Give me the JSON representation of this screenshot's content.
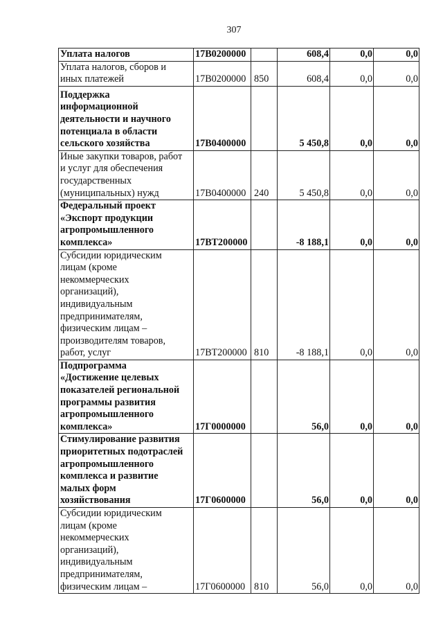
{
  "page_number": "307",
  "rows": [
    {
      "name": "Уплата налогов",
      "code": "17В0200000",
      "vr": "",
      "v1": "608,4",
      "v2": "0,0",
      "v3": "0,0",
      "bold": true
    },
    {
      "name": "Уплата налогов, сборов и\nиных платежей",
      "code": "17В0200000",
      "vr": "850",
      "v1": "608,4",
      "v2": "0,0",
      "v3": "0,0",
      "bold": false
    },
    {
      "name": "Поддержка\nинформационной\nдеятельности и научного\nпотенциала в области\nсельского хозяйства",
      "code": "17В0400000",
      "vr": "",
      "v1": "5 450,8",
      "v2": "0,0",
      "v3": "0,0",
      "bold": true
    },
    {
      "name": "Иные закупки товаров, работ\nи услуг для обеспечения\nгосударственных\n(муниципальных) нужд",
      "code": "17В0400000",
      "vr": "240",
      "v1": "5 450,8",
      "v2": "0,0",
      "v3": "0,0",
      "bold": false
    },
    {
      "name": "Федеральный проект\n«Экспорт продукции\nагропромышленного\nкомплекса»",
      "code": "17ВТ200000",
      "vr": "",
      "v1": "-8 188,1",
      "v2": "0,0",
      "v3": "0,0",
      "bold": true
    },
    {
      "name": "Субсидии юридическим\nлицам (кроме\nнекоммерческих\nорганизаций),\nиндивидуальным\nпредпринимателям,\nфизическим лицам –\nпроизводителям товаров,\nработ, услуг",
      "code": "17ВТ200000",
      "vr": "810",
      "v1": "-8 188,1",
      "v2": "0,0",
      "v3": "0,0",
      "bold": false
    },
    {
      "name": "Подпрограмма\n«Достижение целевых\nпоказателей региональной\nпрограммы развития\nагропромышленного\nкомплекса»",
      "code": "17Г0000000",
      "vr": "",
      "v1": "56,0",
      "v2": "0,0",
      "v3": "0,0",
      "bold": true
    },
    {
      "name": "Стимулирование развития\nприоритетных подотраслей\nагропромышленного\nкомплекса и развитие\nмалых форм\nхозяйствования",
      "code": "17Г0600000",
      "vr": "",
      "v1": "56,0",
      "v2": "0,0",
      "v3": "0,0",
      "bold": true
    },
    {
      "name": "Субсидии юридическим\nлицам (кроме\nнекоммерческих\nорганизаций),\nиндивидуальным\nпредпринимателям,\nфизическим лицам –",
      "code": "17Г0600000",
      "vr": "810",
      "v1": "56,0",
      "v2": "0,0",
      "v3": "0,0",
      "bold": false
    }
  ]
}
